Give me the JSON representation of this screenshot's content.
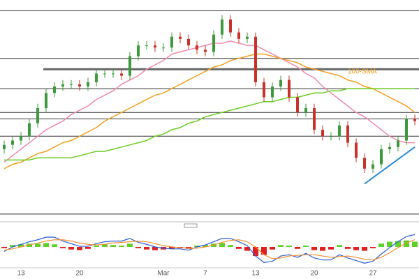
{
  "chart_data": {
    "type": "candlestick",
    "categories": [
      null,
      null,
      "13",
      null,
      null,
      null,
      null,
      null,
      null,
      "20",
      null,
      null,
      null,
      null,
      null,
      null,
      null,
      null,
      null,
      "Mar",
      null,
      null,
      null,
      null,
      "7",
      null,
      null,
      null,
      null,
      null,
      "13",
      null,
      null,
      null,
      null,
      null,
      null,
      "20",
      null,
      null,
      null,
      null,
      null,
      null,
      "27",
      null,
      null,
      null,
      null,
      null
    ],
    "open": [
      31,
      33,
      35,
      37,
      43,
      50,
      57,
      60,
      61,
      61,
      60,
      62,
      66,
      66,
      66,
      65,
      74,
      79,
      79,
      78,
      78,
      83,
      82,
      79,
      77,
      76,
      84,
      91,
      85,
      82,
      83,
      62,
      55,
      60,
      63,
      55,
      48,
      50,
      40,
      37,
      37,
      42,
      34,
      27,
      22,
      24,
      31,
      32,
      35,
      45
    ],
    "high": [
      35,
      37,
      39,
      45,
      52,
      59,
      62,
      63,
      63,
      63,
      64,
      68,
      68,
      68,
      68,
      76,
      81,
      81,
      81,
      80,
      85,
      85,
      84,
      81,
      79,
      86,
      93,
      93,
      87,
      85,
      85,
      64,
      62,
      65,
      65,
      57,
      52,
      52,
      42,
      39,
      44,
      44,
      36,
      29,
      26,
      33,
      34,
      37,
      47,
      47
    ],
    "low": [
      29,
      31,
      33,
      35,
      41,
      48,
      55,
      58,
      59,
      58,
      58,
      60,
      64,
      64,
      63,
      63,
      72,
      77,
      76,
      76,
      76,
      80,
      77,
      75,
      74,
      74,
      82,
      83,
      80,
      80,
      60,
      53,
      53,
      58,
      53,
      46,
      46,
      38,
      35,
      35,
      35,
      32,
      25,
      20,
      20,
      22,
      29,
      30,
      33,
      42
    ],
    "close": [
      33,
      35,
      37,
      43,
      50,
      57,
      60,
      61,
      61,
      60,
      62,
      66,
      66,
      66,
      65,
      74,
      79,
      79,
      78,
      78,
      83,
      82,
      79,
      77,
      76,
      84,
      91,
      85,
      82,
      83,
      62,
      55,
      60,
      63,
      55,
      48,
      50,
      40,
      37,
      37,
      42,
      34,
      27,
      22,
      24,
      31,
      32,
      35,
      45,
      44
    ],
    "up_color": "#3c9a3c",
    "down_color": "#c8322a",
    "ylim": [
      0,
      100
    ],
    "levels": [
      95,
      73,
      68,
      59,
      48,
      45,
      37,
      1
    ],
    "lines": [
      {
        "color": "#f08aa8",
        "values": [
          25,
          28,
          31,
          34,
          37,
          40,
          42,
          44,
          47,
          49,
          51,
          54,
          56,
          58,
          61,
          63,
          65,
          68,
          70,
          72,
          75,
          76,
          77,
          78,
          79,
          80,
          80,
          81,
          80,
          79,
          79,
          77,
          75,
          73,
          71,
          69,
          66,
          64,
          60,
          57,
          54,
          51,
          48,
          46,
          43,
          40,
          37,
          35,
          34,
          34
        ]
      },
      {
        "name": "100-SMA",
        "color": "#f0a020",
        "values": [
          22,
          24,
          25,
          27,
          29,
          30,
          32,
          34,
          35,
          37,
          39,
          41,
          44,
          46,
          48,
          50,
          52,
          54,
          56,
          57,
          59,
          61,
          63,
          65,
          67,
          69,
          70,
          72,
          73,
          74,
          75,
          75,
          74,
          73,
          72,
          71,
          69,
          68,
          67,
          66,
          65,
          63,
          62,
          60,
          59,
          57,
          55,
          53,
          51,
          48
        ]
      },
      {
        "color": "#6ccc22",
        "values": [
          26,
          26,
          26,
          26,
          27,
          27,
          27,
          27,
          27,
          28,
          29,
          30,
          30,
          31,
          32,
          33,
          34,
          35,
          37,
          38,
          40,
          41,
          43,
          44,
          46,
          47,
          48,
          49,
          50,
          51,
          52,
          53,
          53,
          54,
          55,
          55,
          56,
          57,
          57,
          58,
          58,
          59,
          59,
          59,
          59,
          59,
          59,
          59,
          59,
          59
        ]
      }
    ],
    "trendline": {
      "color": "#2a8ad4",
      "x": [
        43,
        49
      ],
      "values": [
        15,
        32
      ]
    },
    "macd": {
      "ylim": [
        -3,
        3
      ],
      "histogram": [
        -0.2,
        0.3,
        0.4,
        0.5,
        0.5,
        0.6,
        0.4,
        -0.2,
        -0.4,
        -0.5,
        -0.3,
        0.2,
        0.4,
        0.3,
        0.2,
        0.5,
        -0.2,
        -0.4,
        -0.5,
        -0.4,
        -0.3,
        -0.2,
        -0.3,
        0.2,
        0.3,
        0.5,
        0.6,
        0.3,
        -0.3,
        -0.6,
        -1.4,
        -1.2,
        -0.4,
        0.3,
        0.2,
        -0.3,
        0.2,
        -0.5,
        -0.6,
        -0.4,
        0.3,
        -0.3,
        -0.5,
        -0.6,
        -0.2,
        0.5,
        0.8,
        0.9,
        1.0,
        0.8
      ],
      "up_color": "#5fd02a",
      "down_color": "#e02020",
      "series": [
        {
          "color": "#2a5ad4",
          "values": [
            -0.7,
            0,
            0.4,
            0.8,
            1.1,
            1.5,
            1.5,
            0.9,
            0.5,
            0.1,
            0.1,
            0.5,
            0.8,
            0.9,
            0.9,
            1.3,
            0.7,
            0.4,
            0,
            -0.2,
            -0.3,
            -0.3,
            -0.5,
            0,
            0.3,
            0.8,
            1.3,
            1.3,
            0.8,
            0.2,
            -1.4,
            -2.4,
            -2.2,
            -1.4,
            -1.2,
            -1.6,
            -1,
            -1.7,
            -2,
            -2,
            -1.2,
            -1.7,
            -2.1,
            -2.5,
            -2.2,
            -1.1,
            -0.1,
            0.8,
            1.6,
            1.9
          ]
        },
        {
          "color": "#f09030",
          "values": [
            -0.5,
            -0.3,
            0,
            0.3,
            0.6,
            0.9,
            1.1,
            1.1,
            0.9,
            0.6,
            0.4,
            0.3,
            0.4,
            0.6,
            0.7,
            0.8,
            0.9,
            0.8,
            0.5,
            0.2,
            0,
            -0.1,
            -0.2,
            -0.2,
            0,
            0.3,
            0.7,
            1,
            1.1,
            0.8,
            0,
            -1.2,
            -1.8,
            -1.7,
            -1.4,
            -1.3,
            -1.2,
            -1.2,
            -1.4,
            -1.6,
            -1.5,
            -1.4,
            -1.6,
            -1.9,
            -2,
            -1.6,
            -0.9,
            -0.1,
            0.6,
            1.1
          ]
        }
      ]
    }
  }
}
